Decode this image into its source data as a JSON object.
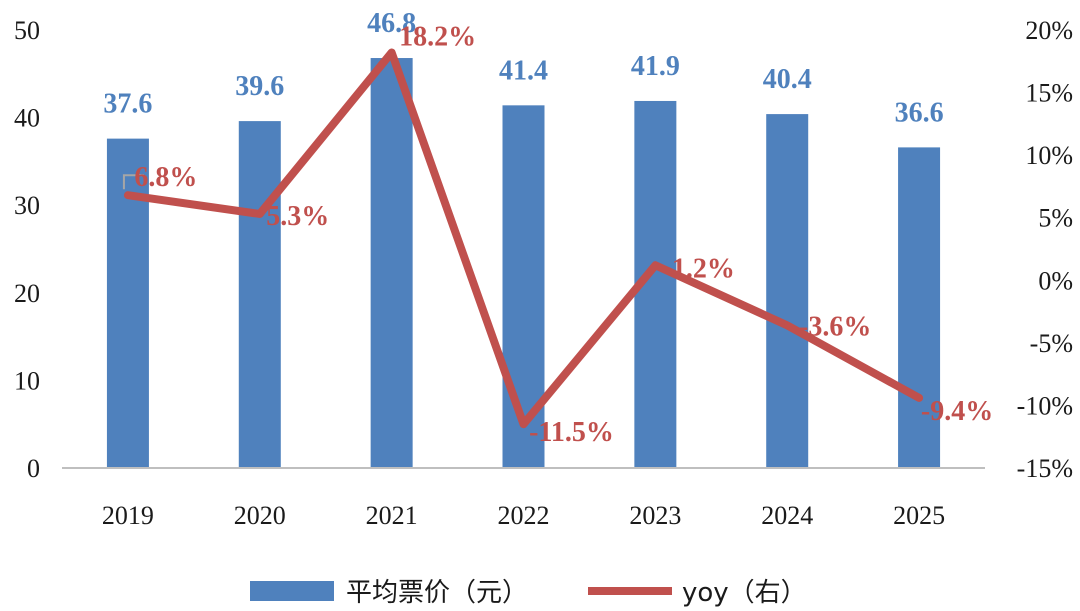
{
  "chart_data": {
    "type": "bar",
    "categories": [
      "2019",
      "2020",
      "2021",
      "2022",
      "2023",
      "2024",
      "2025"
    ],
    "series": [
      {
        "name": "平均票价（元）",
        "kind": "bar",
        "axis": "left",
        "values": [
          37.6,
          39.6,
          46.8,
          41.4,
          41.9,
          40.4,
          36.6
        ],
        "labels": [
          "37.6",
          "39.6",
          "46.8",
          "41.4",
          "41.9",
          "40.4",
          "36.6"
        ],
        "color": "#4f81bd",
        "label_color": "#4f81bd"
      },
      {
        "name": "yoy（右）",
        "kind": "line",
        "axis": "right",
        "values": [
          6.8,
          5.3,
          18.2,
          -11.5,
          1.2,
          -3.6,
          -9.4
        ],
        "labels": [
          "6.8%",
          "5.3%",
          "18.2%",
          "-11.5%",
          "1.2%",
          "-3.6%",
          "-9.4%"
        ],
        "color": "#c0504d",
        "label_color": "#c0504d"
      }
    ],
    "y_left": {
      "ylim": [
        0,
        50
      ],
      "ticks": [
        "0",
        "10",
        "20",
        "30",
        "40",
        "50"
      ]
    },
    "y_right": {
      "ylim": [
        -15,
        20
      ],
      "ticks": [
        "-15%",
        "-10%",
        "-5%",
        "0%",
        "5%",
        "10%",
        "15%",
        "20%"
      ]
    },
    "grid": false,
    "legend": "bottom-center"
  }
}
